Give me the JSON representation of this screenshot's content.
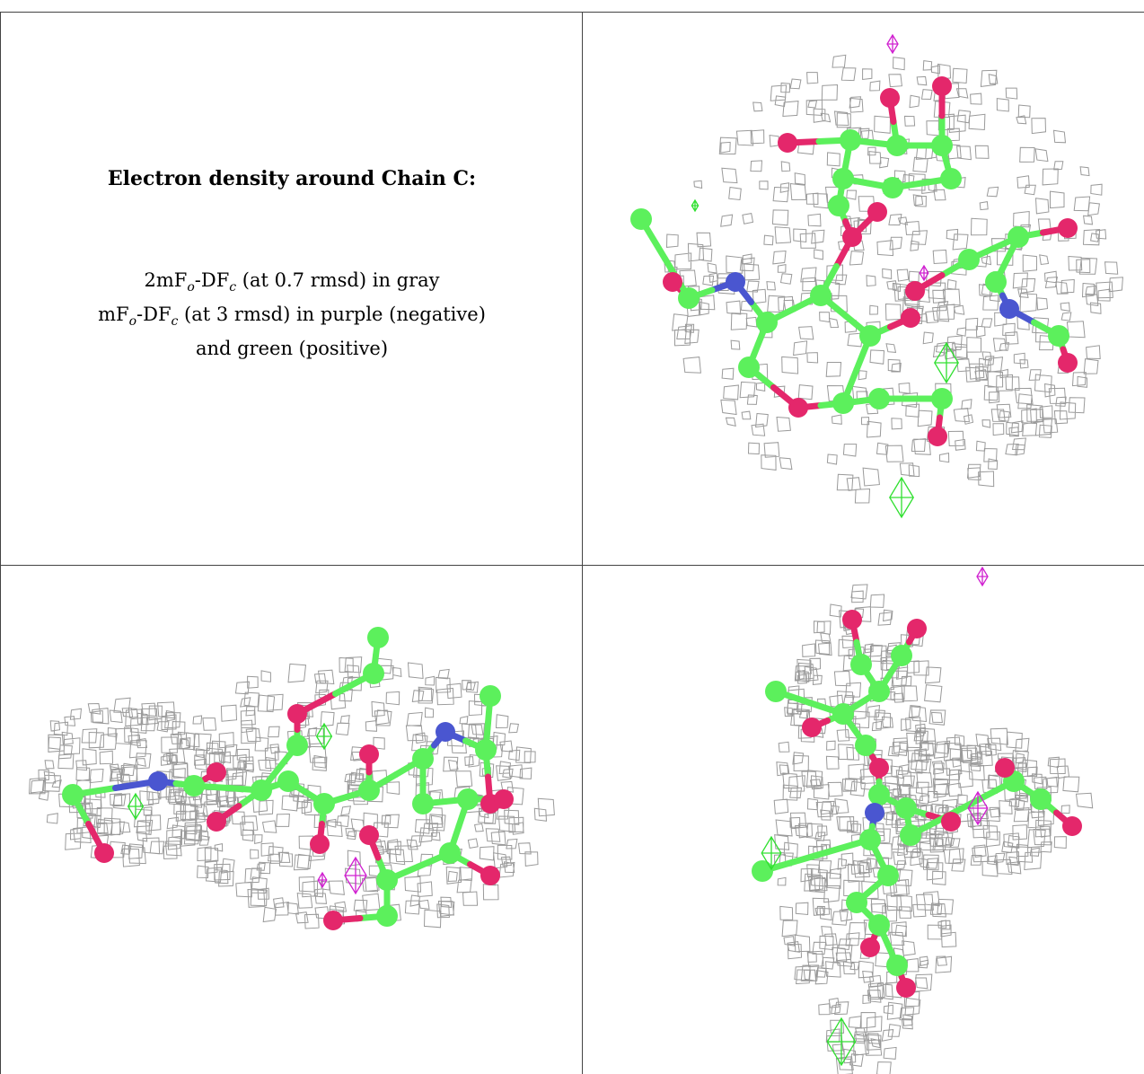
{
  "caption": {
    "title": "Electron density around Chain C:",
    "line1_prefix": "2mF",
    "line1_sub1": "o",
    "line1_mid": "-DF",
    "line1_sub2": "c",
    "line1_suffix": " (at 0.7 rmsd) in gray",
    "line2_prefix": "mF",
    "line2_sub1": "o",
    "line2_mid": "-DF",
    "line2_sub2": "c",
    "line2_suffix": " (at 3 rmsd) in purple (negative)",
    "line3": "and green (positive)"
  },
  "colors": {
    "carbon": "#5cf05c",
    "oxygen": "#e4276b",
    "nitrogen": "#4a56d0",
    "mesh_2fofc": "#9a9a9a",
    "mesh_negative": "#d020d0",
    "mesh_positive": "#30e030",
    "grid_line": "#444444"
  },
  "panels": [
    {
      "name": "view-top-right"
    },
    {
      "name": "view-bottom-left"
    },
    {
      "name": "view-bottom-right"
    }
  ]
}
